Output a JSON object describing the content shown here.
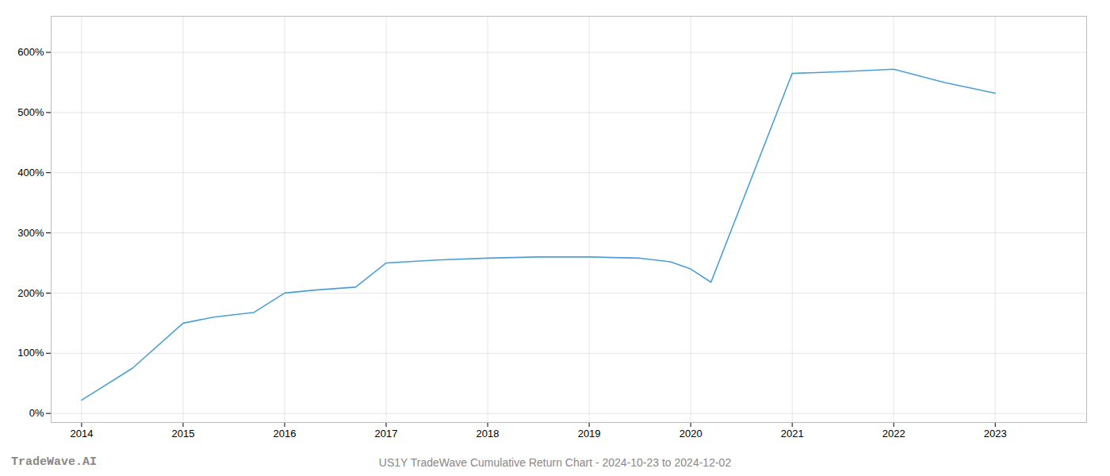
{
  "chart_data": {
    "type": "line",
    "title": "US1Y TradeWave Cumulative Return Chart - 2024-10-23 to 2024-12-02",
    "annotations": [
      "TradeWave.AI"
    ],
    "x": [
      2014.0,
      2014.5,
      2015.0,
      2015.3,
      2015.7,
      2016.0,
      2016.3,
      2016.7,
      2017.0,
      2017.5,
      2018.0,
      2018.5,
      2019.0,
      2019.5,
      2019.8,
      2020.0,
      2020.2,
      2021.0,
      2021.5,
      2022.0,
      2022.5,
      2023.0
    ],
    "values": [
      22,
      75,
      150,
      160,
      168,
      200,
      205,
      210,
      250,
      255,
      258,
      260,
      260,
      258,
      252,
      240,
      218,
      565,
      568,
      572,
      550,
      532
    ],
    "color": "#4c9fd4",
    "xlim": [
      2013.7,
      2023.9
    ],
    "ylim": [
      -15,
      660
    ],
    "xticks": [
      2014,
      2015,
      2016,
      2017,
      2018,
      2019,
      2020,
      2021,
      2022,
      2023
    ],
    "yticks": [
      {
        "value": 0,
        "label": "0%"
      },
      {
        "value": 100,
        "label": "100%"
      },
      {
        "value": 200,
        "label": "200%"
      },
      {
        "value": 300,
        "label": "300%"
      },
      {
        "value": 400,
        "label": "400%"
      },
      {
        "value": 500,
        "label": "500%"
      },
      {
        "value": 600,
        "label": "600%"
      }
    ],
    "grid": true
  }
}
